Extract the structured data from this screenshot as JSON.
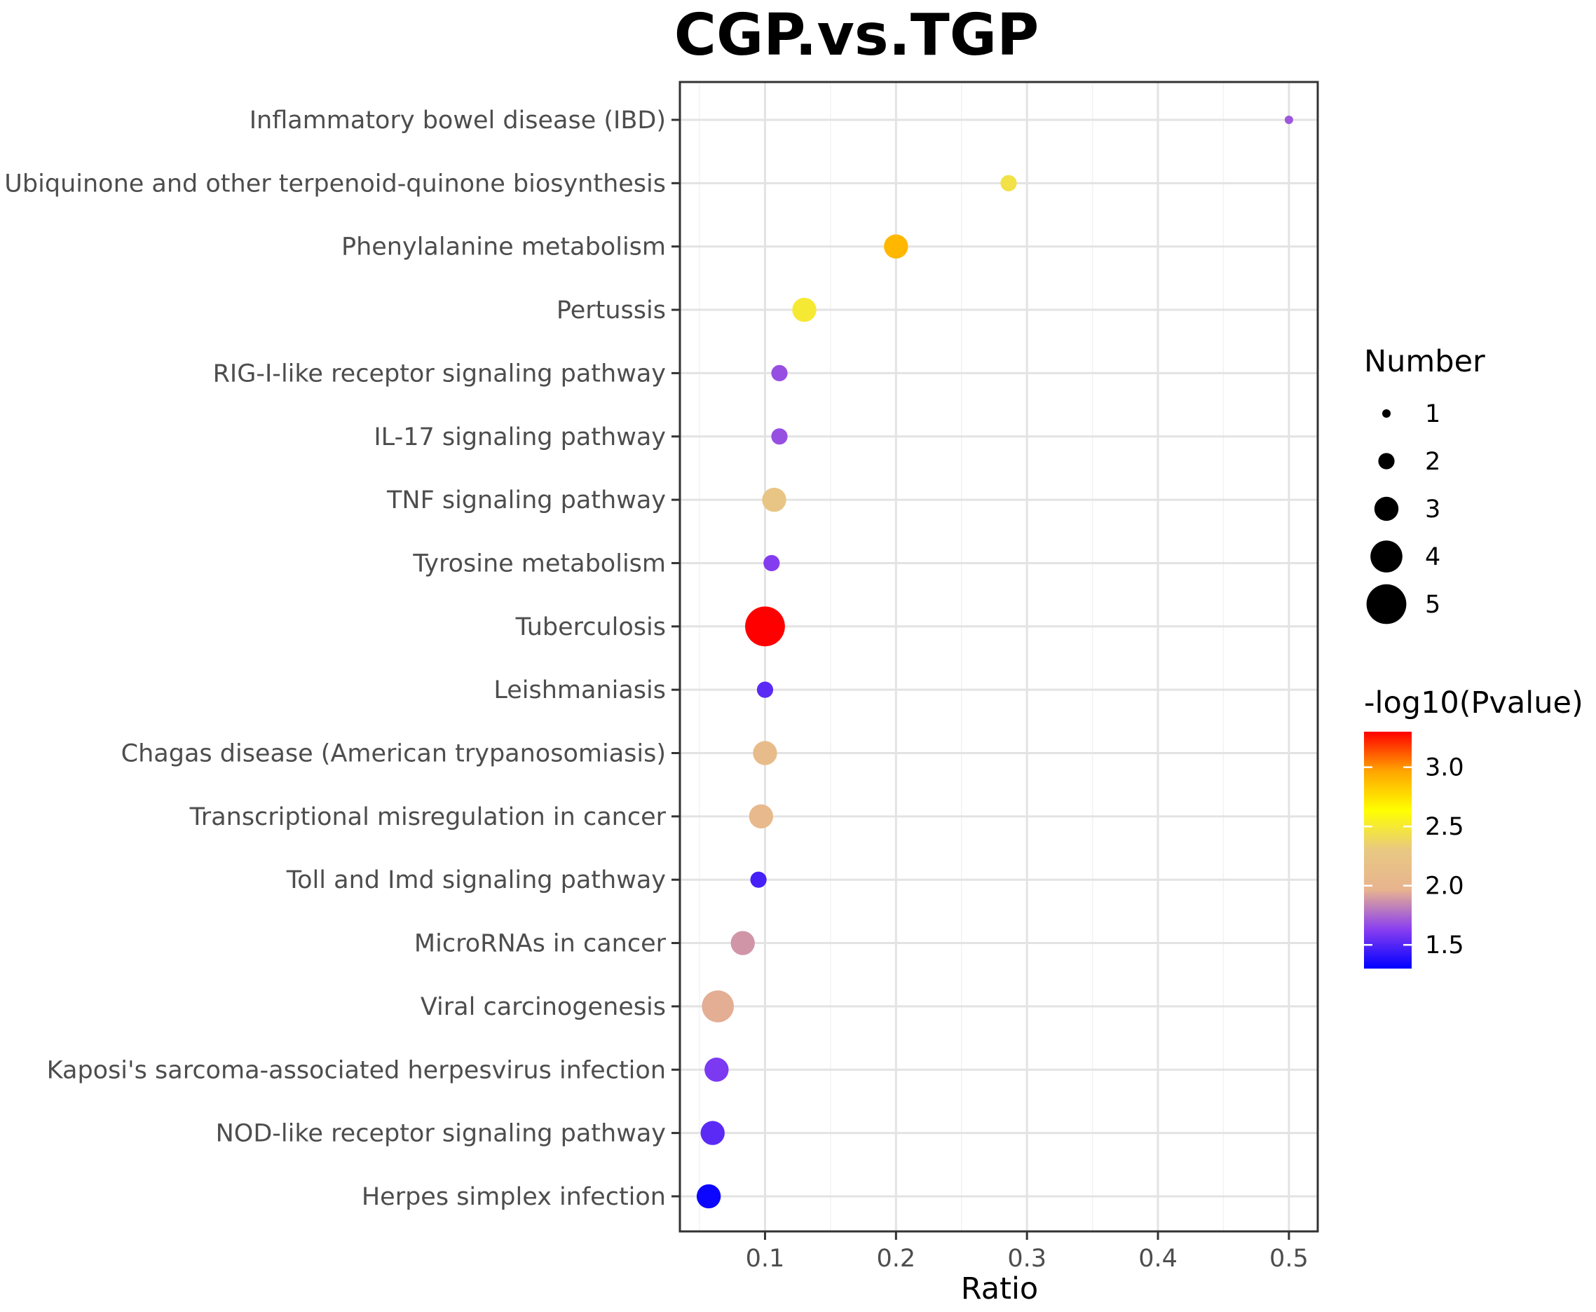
{
  "chart_data": {
    "type": "scatter",
    "title": "CGP.vs.TGP",
    "xlabel": "Ratio",
    "ylabel": "",
    "xlim": [
      0.035,
      0.522
    ],
    "xticks": [
      0.1,
      0.2,
      0.3,
      0.4,
      0.5
    ],
    "xtick_labels": [
      "0.1",
      "0.2",
      "0.3",
      "0.4",
      "0.5"
    ],
    "grid": true,
    "points": [
      {
        "term": "Inflammatory bowel disease (IBD)",
        "ratio": 0.5,
        "number": 1,
        "neglog10p": 1.7
      },
      {
        "term": "Ubiquinone and other terpenoid-quinone biosynthesis",
        "ratio": 0.286,
        "number": 2,
        "neglog10p": 2.45
      },
      {
        "term": "Phenylalanine metabolism",
        "ratio": 0.2,
        "number": 3,
        "neglog10p": 2.9
      },
      {
        "term": "Pertussis",
        "ratio": 0.13,
        "number": 3,
        "neglog10p": 2.5
      },
      {
        "term": "RIG-I-like receptor signaling pathway",
        "ratio": 0.111,
        "number": 2,
        "neglog10p": 1.68
      },
      {
        "term": "IL-17 signaling pathway",
        "ratio": 0.111,
        "number": 2,
        "neglog10p": 1.68
      },
      {
        "term": "TNF signaling pathway",
        "ratio": 0.107,
        "number": 3,
        "neglog10p": 2.25
      },
      {
        "term": "Tyrosine metabolism",
        "ratio": 0.105,
        "number": 2,
        "neglog10p": 1.62
      },
      {
        "term": "Tuberculosis",
        "ratio": 0.1,
        "number": 5,
        "neglog10p": 3.3
      },
      {
        "term": "Leishmaniasis",
        "ratio": 0.1,
        "number": 2,
        "neglog10p": 1.52
      },
      {
        "term": "Chagas disease (American trypanosomiasis)",
        "ratio": 0.1,
        "number": 3,
        "neglog10p": 2.1
      },
      {
        "term": "Transcriptional misregulation in cancer",
        "ratio": 0.097,
        "number": 3,
        "neglog10p": 2.05
      },
      {
        "term": "Toll and Imd signaling pathway",
        "ratio": 0.095,
        "number": 2,
        "neglog10p": 1.47
      },
      {
        "term": "MicroRNAs in cancer",
        "ratio": 0.083,
        "number": 3,
        "neglog10p": 1.88
      },
      {
        "term": "Viral carcinogenesis",
        "ratio": 0.064,
        "number": 4,
        "neglog10p": 1.95
      },
      {
        "term": "Kaposi's sarcoma-associated herpesvirus infection",
        "ratio": 0.063,
        "number": 3,
        "neglog10p": 1.6
      },
      {
        "term": "NOD-like receptor signaling pathway",
        "ratio": 0.06,
        "number": 3,
        "neglog10p": 1.52
      },
      {
        "term": "Herpes simplex infection",
        "ratio": 0.057,
        "number": 3,
        "neglog10p": 1.33
      }
    ],
    "size_legend": {
      "title": "Number",
      "values": [
        1,
        2,
        3,
        4,
        5
      ],
      "labels": [
        "1",
        "2",
        "3",
        "4",
        "5"
      ]
    },
    "color_legend": {
      "title": "-log10(Pvalue)",
      "range": [
        1.3,
        3.3
      ],
      "ticks": [
        1.5,
        2.0,
        2.5,
        3.0
      ],
      "tick_labels": [
        "1.5",
        "2.0",
        "2.5",
        "3.0"
      ],
      "gradient": [
        "#0000ff",
        "#8a3ff0",
        "#e8b48f",
        "#e8c882",
        "#ffff00",
        "#ffa500",
        "#ff0000"
      ]
    }
  }
}
